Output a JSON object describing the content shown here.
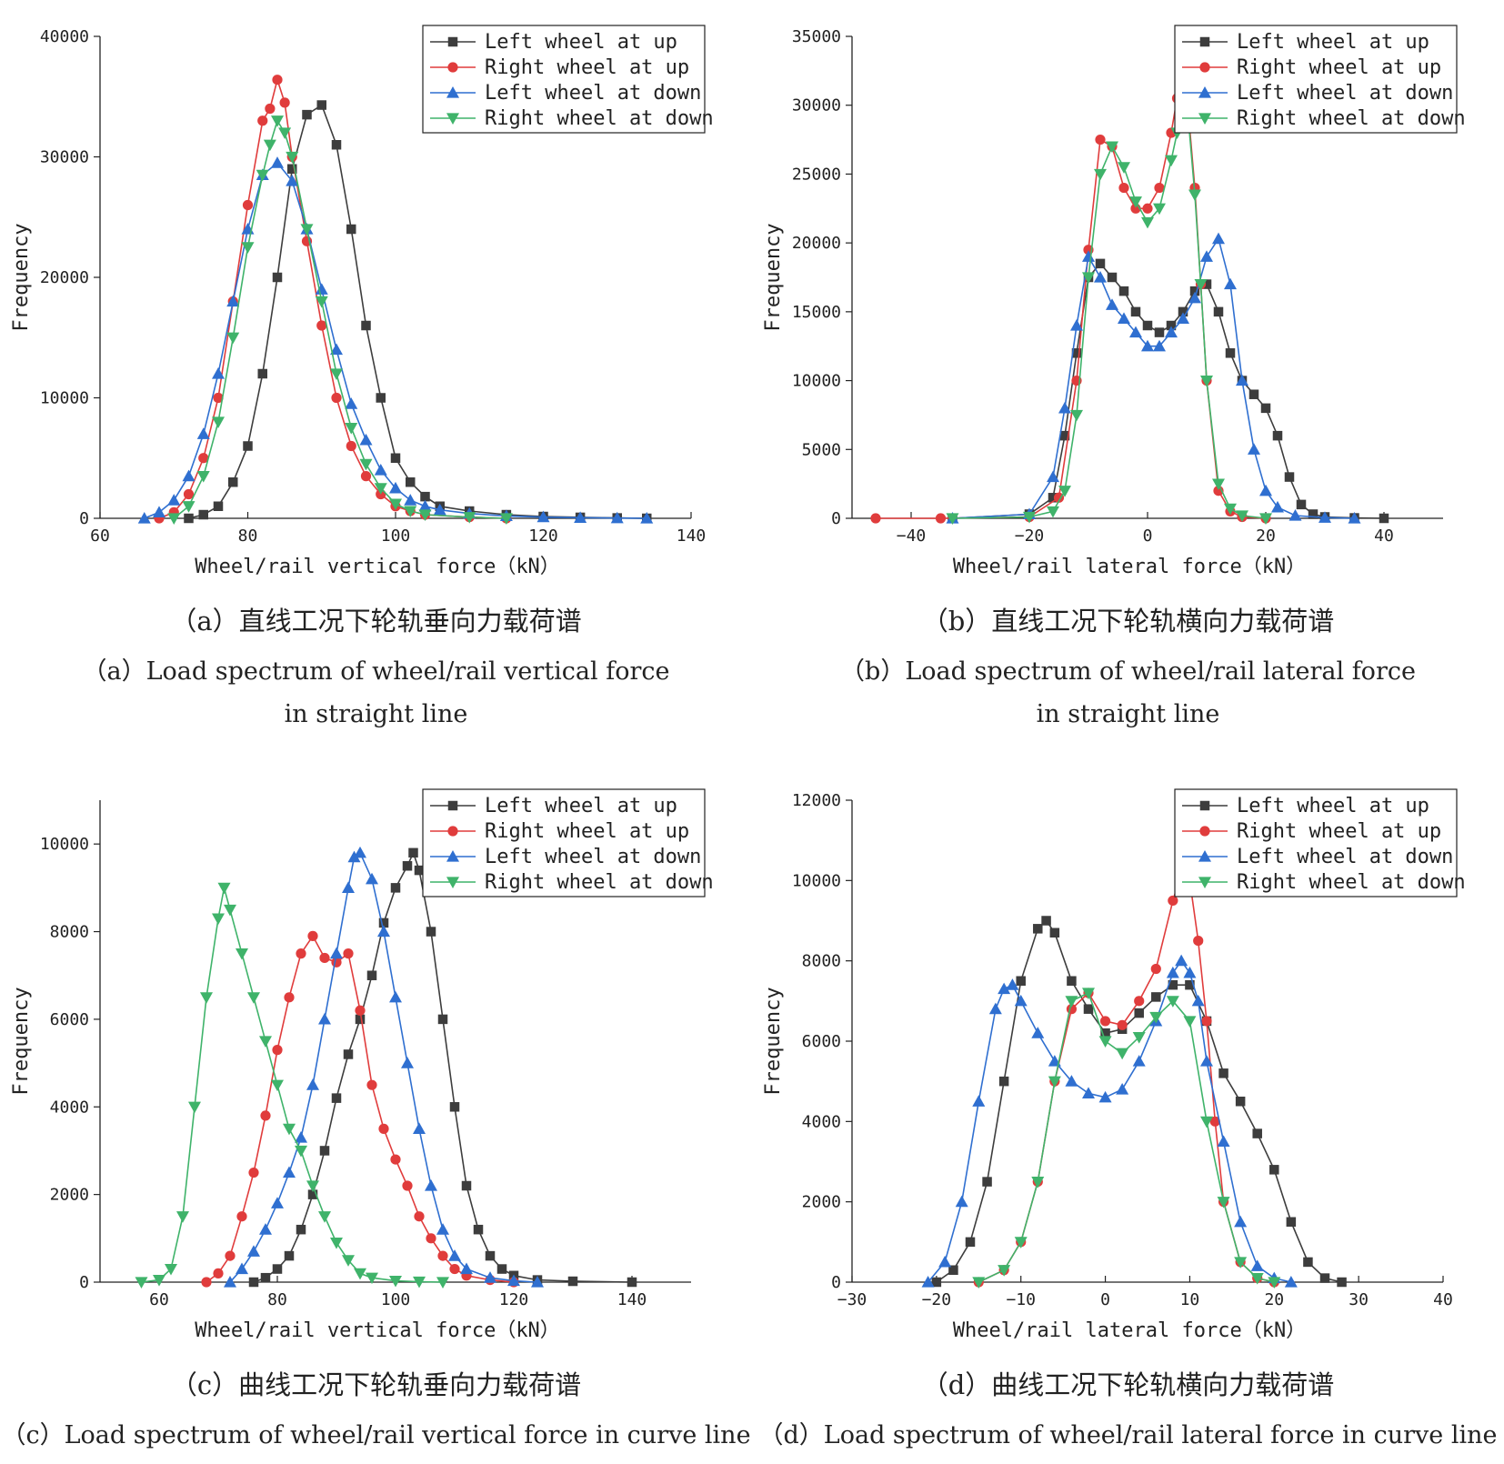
{
  "colors": {
    "left_up": "#3d3d3d",
    "right_up": "#e03c3c",
    "left_down": "#2f6fd0",
    "right_down": "#3fb36a"
  },
  "panels": [
    {
      "id": "a",
      "caption_cn": "（a）直线工况下轮轨垂向力载荷谱",
      "caption_en_line1": "（a）Load spectrum of wheel/rail vertical force",
      "caption_en_line2": "in straight line"
    },
    {
      "id": "b",
      "caption_cn": "（b）直线工况下轮轨横向力载荷谱",
      "caption_en_line1": "（b）Load spectrum of wheel/rail lateral force",
      "caption_en_line2": "in straight line"
    },
    {
      "id": "c",
      "caption_cn": "（c）曲线工况下轮轨垂向力载荷谱",
      "caption_en_line1": "（c）Load spectrum of wheel/rail vertical force in curve line",
      "caption_en_line2": ""
    },
    {
      "id": "d",
      "caption_cn": "（d）曲线工况下轮轨横向力载荷谱",
      "caption_en_line1": "（d）Load spectrum of wheel/rail lateral force in curve line",
      "caption_en_line2": ""
    }
  ],
  "chart_data": [
    {
      "type": "line",
      "xlabel": "Wheel/rail vertical force（kN）",
      "ylabel": "Frequency",
      "xlim": [
        60,
        140
      ],
      "ylim": [
        0,
        40000
      ],
      "xticks": [
        60,
        80,
        100,
        120,
        140
      ],
      "yticks": [
        0,
        10000,
        20000,
        30000,
        40000
      ],
      "legend_position": "top-right",
      "series": [
        {
          "name": "Left wheel at up",
          "marker": "square",
          "x": [
            72,
            74,
            76,
            78,
            80,
            82,
            84,
            86,
            88,
            90,
            92,
            94,
            96,
            98,
            100,
            102,
            104,
            106,
            110,
            115,
            120,
            125,
            130,
            134
          ],
          "values": [
            0,
            300,
            1000,
            3000,
            6000,
            12000,
            20000,
            29000,
            33500,
            34300,
            31000,
            24000,
            16000,
            10000,
            5000,
            3000,
            1800,
            1000,
            600,
            300,
            150,
            80,
            30,
            0
          ]
        },
        {
          "name": "Right wheel at up",
          "marker": "circle",
          "x": [
            68,
            70,
            72,
            74,
            76,
            78,
            80,
            82,
            83,
            84,
            85,
            86,
            88,
            90,
            92,
            94,
            96,
            98,
            100,
            102,
            104,
            110,
            115
          ],
          "values": [
            0,
            500,
            2000,
            5000,
            10000,
            18000,
            26000,
            33000,
            34000,
            36400,
            34500,
            30000,
            23000,
            16000,
            10000,
            6000,
            3500,
            2000,
            1000,
            600,
            300,
            100,
            0
          ]
        },
        {
          "name": "Left wheel at down",
          "marker": "triangle-up",
          "x": [
            66,
            68,
            70,
            72,
            74,
            76,
            78,
            80,
            82,
            84,
            86,
            88,
            90,
            92,
            94,
            96,
            98,
            100,
            102,
            104,
            106,
            110,
            115,
            120,
            125,
            130,
            134
          ],
          "values": [
            0,
            500,
            1500,
            3500,
            7000,
            12000,
            18000,
            24000,
            28500,
            29500,
            28000,
            24000,
            19000,
            14000,
            9500,
            6500,
            4000,
            2500,
            1500,
            1000,
            700,
            400,
            200,
            100,
            50,
            20,
            0
          ]
        },
        {
          "name": "Right wheel at down",
          "marker": "triangle-down",
          "x": [
            70,
            72,
            74,
            76,
            78,
            80,
            82,
            83,
            84,
            85,
            86,
            88,
            90,
            92,
            94,
            96,
            98,
            100,
            102,
            104,
            110,
            115
          ],
          "values": [
            0,
            1000,
            3500,
            8000,
            15000,
            22500,
            28500,
            31000,
            33000,
            32000,
            30000,
            24000,
            18000,
            12000,
            7500,
            4500,
            2500,
            1200,
            600,
            300,
            100,
            0
          ]
        }
      ]
    },
    {
      "type": "line",
      "xlabel": "Wheel/rail lateral force（kN）",
      "ylabel": "Frequency",
      "xlim": [
        -50,
        50
      ],
      "ylim": [
        0,
        35000
      ],
      "xticks": [
        -40,
        -20,
        0,
        20,
        40
      ],
      "yticks": [
        0,
        5000,
        10000,
        15000,
        20000,
        25000,
        30000,
        35000
      ],
      "legend_position": "top-right",
      "series": [
        {
          "name": "Left wheel at up",
          "marker": "square",
          "x": [
            -33,
            -20,
            -16,
            -14,
            -12,
            -10,
            -8,
            -6,
            -4,
            -2,
            0,
            2,
            4,
            6,
            8,
            10,
            12,
            14,
            16,
            18,
            20,
            22,
            24,
            26,
            28,
            30,
            35,
            40
          ],
          "values": [
            0,
            300,
            1500,
            6000,
            12000,
            17500,
            18500,
            17500,
            16500,
            15000,
            14000,
            13500,
            14000,
            15000,
            16500,
            17000,
            15000,
            12000,
            10000,
            9000,
            8000,
            6000,
            3000,
            1000,
            300,
            100,
            30,
            0
          ]
        },
        {
          "name": "Right wheel at up",
          "marker": "circle",
          "x": [
            -46,
            -35,
            -20,
            -15,
            -12,
            -10,
            -8,
            -6,
            -4,
            -2,
            0,
            2,
            4,
            5,
            6,
            7,
            8,
            9,
            10,
            12,
            14,
            16,
            20
          ],
          "values": [
            0,
            0,
            100,
            1500,
            10000,
            19500,
            27500,
            27000,
            24000,
            22500,
            22500,
            24000,
            28000,
            30500,
            30500,
            29000,
            24000,
            17000,
            10000,
            2000,
            500,
            100,
            0
          ]
        },
        {
          "name": "Left wheel at down",
          "marker": "triangle-up",
          "x": [
            -33,
            -20,
            -16,
            -14,
            -12,
            -10,
            -8,
            -6,
            -4,
            -2,
            0,
            2,
            4,
            6,
            8,
            10,
            12,
            14,
            16,
            18,
            20,
            22,
            25,
            30,
            35
          ],
          "values": [
            0,
            300,
            3000,
            8000,
            14000,
            19000,
            17500,
            15500,
            14500,
            13500,
            12500,
            12500,
            13500,
            14500,
            16000,
            19000,
            20300,
            17000,
            10000,
            5000,
            2000,
            800,
            200,
            50,
            0
          ]
        },
        {
          "name": "Right wheel at down",
          "marker": "triangle-down",
          "x": [
            -33,
            -20,
            -16,
            -14,
            -12,
            -10,
            -8,
            -6,
            -4,
            -2,
            0,
            2,
            4,
            5,
            6,
            7,
            8,
            9,
            10,
            12,
            14,
            16,
            20
          ],
          "values": [
            0,
            100,
            500,
            2000,
            7500,
            17500,
            25000,
            27000,
            25500,
            23000,
            21500,
            22500,
            26000,
            28000,
            29000,
            28500,
            23500,
            17000,
            10000,
            2500,
            700,
            200,
            0
          ]
        }
      ]
    },
    {
      "type": "line",
      "xlabel": "Wheel/rail vertical force（kN）",
      "ylabel": "Frequency",
      "xlim": [
        50,
        150
      ],
      "ylim": [
        0,
        11000
      ],
      "xticks": [
        60,
        80,
        100,
        120,
        140
      ],
      "yticks": [
        0,
        2000,
        4000,
        6000,
        8000,
        10000
      ],
      "legend_position": "top-right",
      "series": [
        {
          "name": "Left wheel at up",
          "marker": "square",
          "x": [
            76,
            78,
            80,
            82,
            84,
            86,
            88,
            90,
            92,
            94,
            96,
            98,
            100,
            102,
            103,
            104,
            106,
            108,
            110,
            112,
            114,
            116,
            118,
            120,
            124,
            130,
            140
          ],
          "values": [
            0,
            100,
            300,
            600,
            1200,
            2000,
            3000,
            4200,
            5200,
            6000,
            7000,
            8200,
            9000,
            9500,
            9800,
            9400,
            8000,
            6000,
            4000,
            2200,
            1200,
            600,
            300,
            150,
            50,
            20,
            0
          ]
        },
        {
          "name": "Right wheel at up",
          "marker": "circle",
          "x": [
            68,
            70,
            72,
            74,
            76,
            78,
            80,
            82,
            84,
            86,
            88,
            90,
            92,
            94,
            96,
            98,
            100,
            102,
            104,
            106,
            108,
            110,
            112,
            116,
            120
          ],
          "values": [
            0,
            200,
            600,
            1500,
            2500,
            3800,
            5300,
            6500,
            7500,
            7900,
            7400,
            7300,
            7500,
            6200,
            4500,
            3500,
            2800,
            2200,
            1500,
            1000,
            600,
            300,
            150,
            50,
            0
          ]
        },
        {
          "name": "Left wheel at down",
          "marker": "triangle-up",
          "x": [
            72,
            74,
            76,
            78,
            80,
            82,
            84,
            86,
            88,
            90,
            92,
            93,
            94,
            96,
            98,
            100,
            102,
            104,
            106,
            108,
            110,
            112,
            116,
            120,
            124
          ],
          "values": [
            0,
            300,
            700,
            1200,
            1800,
            2500,
            3300,
            4500,
            6000,
            7500,
            9000,
            9700,
            9800,
            9200,
            8000,
            6500,
            5000,
            3500,
            2200,
            1200,
            600,
            300,
            100,
            30,
            0
          ]
        },
        {
          "name": "Right wheel at down",
          "marker": "triangle-down",
          "x": [
            57,
            60,
            62,
            64,
            66,
            68,
            70,
            71,
            72,
            74,
            76,
            78,
            80,
            82,
            84,
            86,
            88,
            90,
            92,
            94,
            96,
            100,
            104,
            108
          ],
          "values": [
            0,
            50,
            300,
            1500,
            4000,
            6500,
            8300,
            9000,
            8500,
            7500,
            6500,
            5500,
            4500,
            3500,
            3000,
            2200,
            1500,
            900,
            500,
            200,
            100,
            30,
            10,
            0
          ]
        }
      ]
    },
    {
      "type": "line",
      "xlabel": "Wheel/rail lateral force（kN）",
      "ylabel": "Frequency",
      "xlim": [
        -30,
        40
      ],
      "ylim": [
        0,
        12000
      ],
      "xticks": [
        -30,
        -20,
        -10,
        0,
        10,
        20,
        30,
        40
      ],
      "yticks": [
        0,
        2000,
        4000,
        6000,
        8000,
        10000,
        12000
      ],
      "legend_position": "top-right",
      "series": [
        {
          "name": "Left wheel at up",
          "marker": "square",
          "x": [
            -20,
            -18,
            -16,
            -14,
            -12,
            -10,
            -8,
            -7,
            -6,
            -4,
            -2,
            0,
            2,
            4,
            6,
            8,
            10,
            12,
            14,
            16,
            18,
            20,
            22,
            24,
            26,
            28
          ],
          "values": [
            0,
            300,
            1000,
            2500,
            5000,
            7500,
            8800,
            9000,
            8700,
            7500,
            6800,
            6200,
            6300,
            6700,
            7100,
            7400,
            7400,
            6500,
            5200,
            4500,
            3700,
            2800,
            1500,
            500,
            100,
            0
          ]
        },
        {
          "name": "Right wheel at up",
          "marker": "circle",
          "x": [
            -15,
            -12,
            -10,
            -8,
            -6,
            -4,
            -2,
            0,
            2,
            4,
            6,
            8,
            9,
            10,
            11,
            12,
            13,
            14,
            16,
            18,
            20
          ],
          "values": [
            0,
            300,
            1000,
            2500,
            5000,
            6800,
            7200,
            6500,
            6400,
            7000,
            7800,
            9500,
            10200,
            10000,
            8500,
            6500,
            4000,
            2000,
            500,
            100,
            0
          ]
        },
        {
          "name": "Left wheel at down",
          "marker": "triangle-up",
          "x": [
            -21,
            -19,
            -17,
            -15,
            -13,
            -12,
            -11,
            -10,
            -8,
            -6,
            -4,
            -2,
            0,
            2,
            4,
            6,
            8,
            9,
            10,
            11,
            12,
            14,
            16,
            18,
            20,
            22
          ],
          "values": [
            0,
            500,
            2000,
            4500,
            6800,
            7300,
            7400,
            7000,
            6200,
            5500,
            5000,
            4700,
            4600,
            4800,
            5500,
            6500,
            7700,
            8000,
            7700,
            7000,
            5500,
            3500,
            1500,
            400,
            100,
            0
          ]
        },
        {
          "name": "Right wheel at down",
          "marker": "triangle-down",
          "x": [
            -15,
            -12,
            -10,
            -8,
            -6,
            -4,
            -2,
            0,
            2,
            4,
            6,
            8,
            10,
            12,
            14,
            16,
            18,
            20
          ],
          "values": [
            0,
            300,
            1000,
            2500,
            5000,
            7000,
            7200,
            6000,
            5700,
            6100,
            6600,
            7000,
            6500,
            4000,
            2000,
            500,
            100,
            0
          ]
        }
      ]
    }
  ]
}
